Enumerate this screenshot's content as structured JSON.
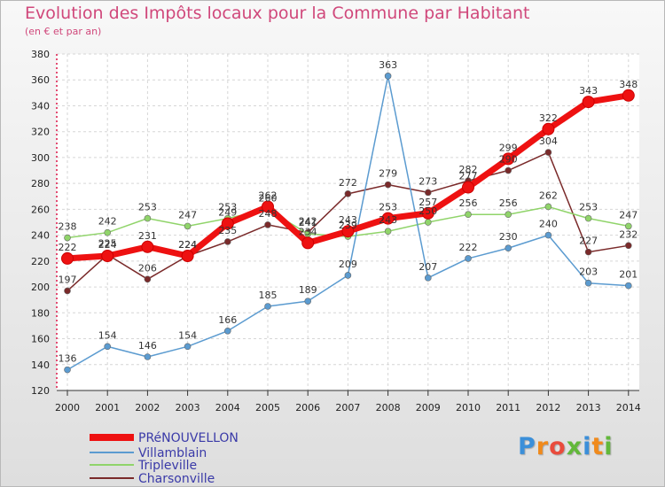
{
  "chart_data": {
    "type": "line",
    "title": "Evolution des Impôts locaux pour la Commune par Habitant",
    "subtitle": "(en € et par an)",
    "xlabel": "",
    "ylabel": "",
    "ylim": [
      120,
      380
    ],
    "yticks": [
      "120",
      "140",
      "160",
      "180",
      "200",
      "220",
      "240",
      "260",
      "280",
      "300",
      "320",
      "340",
      "360",
      "380"
    ],
    "categories": [
      "2000",
      "2001",
      "2002",
      "2003",
      "2004",
      "2005",
      "2006",
      "2007",
      "2008",
      "2009",
      "2010",
      "2011",
      "2012",
      "2013",
      "2014"
    ],
    "series": [
      {
        "name": "Charsonville",
        "color": "#7a2a2a",
        "values": [
          197,
          225,
          206,
          224,
          235,
          248,
          242,
          272,
          279,
          273,
          282,
          290,
          304,
          227,
          232
        ],
        "labels": [
          "197",
          "225",
          "206",
          "224",
          "235",
          "248",
          "242",
          "272",
          "279",
          "273",
          "282",
          "290",
          "304",
          "227",
          "232"
        ]
      },
      {
        "name": "Tripleville",
        "color": "#90d46a",
        "values": [
          238,
          242,
          253,
          247,
          253,
          260,
          241,
          239,
          243,
          250,
          256,
          256,
          262,
          253,
          247
        ],
        "labels": [
          "238",
          "242",
          "253",
          "247",
          "253",
          "260",
          "241",
          "239",
          "243",
          "250",
          "256",
          "256",
          "262",
          "253",
          "247"
        ]
      },
      {
        "name": "Villamblain",
        "color": "#5b9bd0",
        "values": [
          136,
          154,
          146,
          154,
          166,
          185,
          189,
          209,
          363,
          207,
          222,
          230,
          240,
          203,
          201
        ],
        "labels": [
          "136",
          "154",
          "146",
          "154",
          "166",
          "185",
          "189",
          "209",
          "363",
          "207",
          "222",
          "230",
          "240",
          "203",
          "201"
        ]
      },
      {
        "name": "PRéNOUVELLON",
        "color": "#ee1111",
        "values": [
          222,
          224,
          231,
          224,
          249,
          262,
          234,
          243,
          253,
          257,
          277,
          299,
          322,
          343,
          348
        ],
        "labels": [
          "222",
          "224",
          "231",
          "224",
          "249",
          "262",
          "234",
          "243",
          "253",
          "257",
          "277",
          "299",
          "322",
          "343",
          "348"
        ]
      }
    ],
    "legend": [
      "PRéNOUVELLON",
      "Villamblain",
      "Tripleville",
      "Charsonville"
    ],
    "legend_position": "bottom-left",
    "grid": true
  },
  "logo": {
    "letters": [
      "P",
      "r",
      "o",
      "x",
      "i",
      "t",
      "i"
    ],
    "colors": [
      "#3b8fd9",
      "#f08a1c",
      "#e94b3c",
      "#62b83a",
      "#3b8fd9",
      "#f08a1c",
      "#62b83a"
    ]
  }
}
